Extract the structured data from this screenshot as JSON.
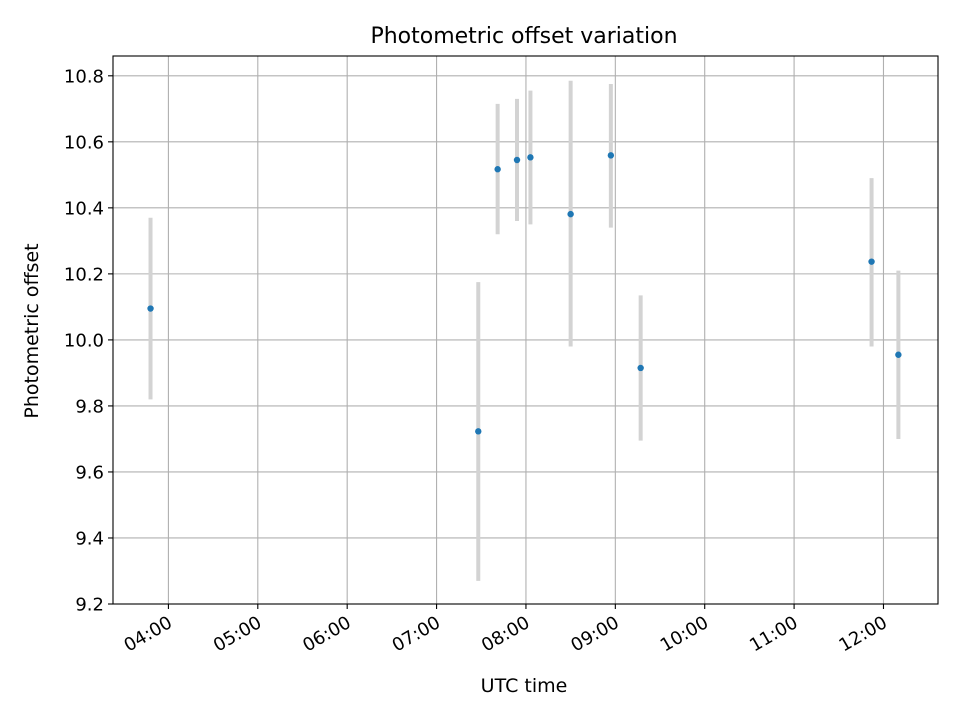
{
  "chart_data": {
    "type": "scatter",
    "title": "Photometric offset variation",
    "xlabel": "UTC time",
    "ylabel": "Photometric offset",
    "x_tick_labels": [
      "04:00",
      "05:00",
      "06:00",
      "07:00",
      "08:00",
      "09:00",
      "10:00",
      "11:00",
      "12:00"
    ],
    "x_tick_hours": [
      4,
      5,
      6,
      7,
      8,
      9,
      10,
      11,
      12
    ],
    "xlim_hours": [
      3.38,
      12.61
    ],
    "y_tick_labels": [
      "9.2",
      "9.4",
      "9.6",
      "9.8",
      "10.0",
      "10.2",
      "10.4",
      "10.6",
      "10.8"
    ],
    "y_ticks": [
      9.2,
      9.4,
      9.6,
      9.8,
      10.0,
      10.2,
      10.4,
      10.6,
      10.8
    ],
    "ylim": [
      9.2,
      10.86
    ],
    "grid": true,
    "colors": {
      "points": "#1f77b4",
      "errorbars": "#d3d3d3",
      "grid": "#b0b0b0",
      "axes": "#000000"
    },
    "series": [
      {
        "points": [
          {
            "time": "03:48",
            "y": 10.095,
            "ylow": 9.82,
            "yhigh": 10.37
          },
          {
            "time": "07:28",
            "y": 9.723,
            "ylow": 9.27,
            "yhigh": 10.175
          },
          {
            "time": "07:41",
            "y": 10.517,
            "ylow": 10.32,
            "yhigh": 10.715
          },
          {
            "time": "07:54",
            "y": 10.545,
            "ylow": 10.36,
            "yhigh": 10.73
          },
          {
            "time": "08:03",
            "y": 10.553,
            "ylow": 10.35,
            "yhigh": 10.755
          },
          {
            "time": "08:30",
            "y": 10.381,
            "ylow": 9.98,
            "yhigh": 10.785
          },
          {
            "time": "08:57",
            "y": 10.559,
            "ylow": 10.34,
            "yhigh": 10.775
          },
          {
            "time": "09:17",
            "y": 9.915,
            "ylow": 9.695,
            "yhigh": 10.135
          },
          {
            "time": "11:52",
            "y": 10.237,
            "ylow": 9.98,
            "yhigh": 10.49
          },
          {
            "time": "12:10",
            "y": 9.955,
            "ylow": 9.7,
            "yhigh": 10.21
          }
        ]
      }
    ]
  }
}
